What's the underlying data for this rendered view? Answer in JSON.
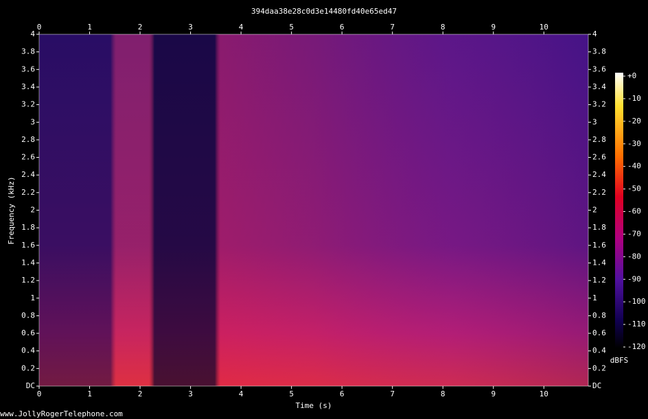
{
  "chart_data": {
    "type": "spectrogram",
    "title": "394daa38e28c0d3e14480fd40e65ed47",
    "xlabel": "Time (s)",
    "ylabel": "Frequency (kHz)",
    "colorbar_label": "dBFS",
    "footer": "www.JollyRogerTelephone.com",
    "xlim": [
      0,
      10.88
    ],
    "xticks": [
      0,
      1,
      2,
      3,
      4,
      5,
      6,
      7,
      8,
      9,
      10
    ],
    "ylim": [
      0,
      4
    ],
    "yticks": [
      {
        "value": 0,
        "label": "DC"
      },
      0.2,
      0.4,
      0.6,
      0.8,
      1,
      1.2,
      1.4,
      1.6,
      1.8,
      2,
      2.2,
      2.4,
      2.6,
      2.8,
      3,
      3.2,
      3.4,
      3.6,
      3.8,
      4
    ],
    "zlim": [
      -120,
      0
    ],
    "zticks": [
      {
        "value": 0,
        "label": "+0"
      },
      -10,
      -20,
      -30,
      -40,
      -50,
      -60,
      -70,
      -80,
      -90,
      -100,
      -110,
      -120
    ]
  }
}
